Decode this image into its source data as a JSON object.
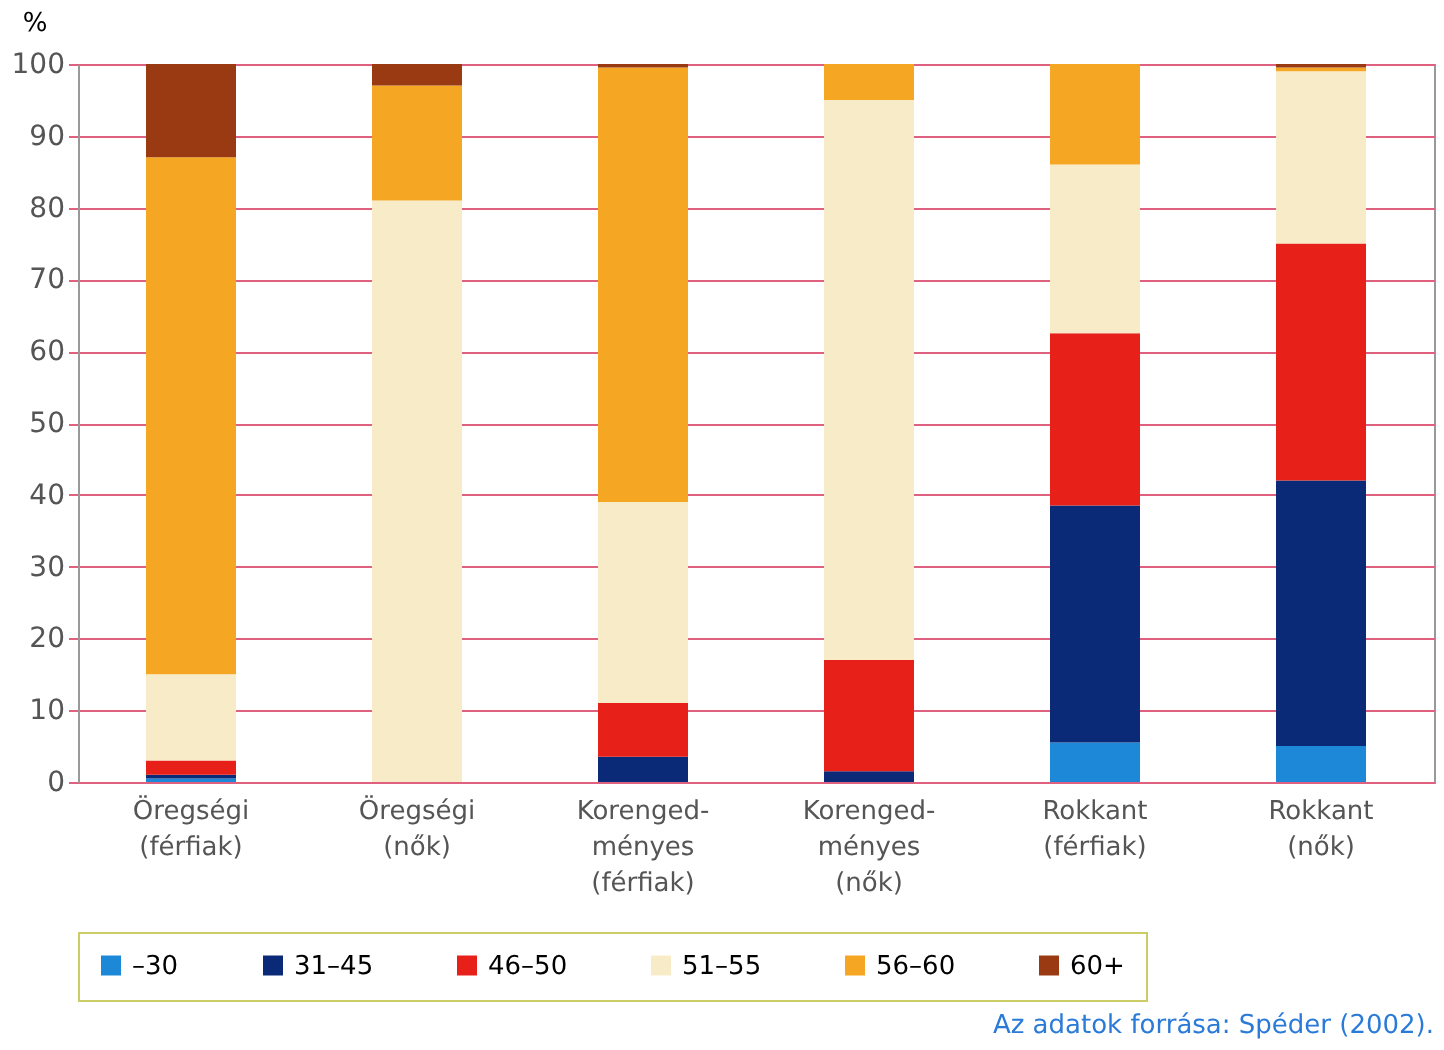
{
  "chart_data": {
    "type": "bar",
    "stacked": true,
    "ylabel": "%",
    "categories": [
      "Öregségi\n(férfiak)",
      "Öregségi\n(nők)",
      "Korenged-\nményes\n(férfiak)",
      "Korenged-\nményes\n(nők)",
      "Rokkant\n(férfiak)",
      "Rokkant\n(nők)"
    ],
    "series": [
      {
        "name": "–30",
        "color": "#1e88d8",
        "values": [
          0.5,
          0,
          0,
          0,
          5.5,
          5
        ]
      },
      {
        "name": "31–45",
        "color": "#0a2a78",
        "values": [
          0.5,
          0,
          3.5,
          1.5,
          33,
          37
        ]
      },
      {
        "name": "46–50",
        "color": "#e8201a",
        "values": [
          2,
          0,
          7.5,
          15.5,
          24,
          33
        ]
      },
      {
        "name": "51–55",
        "color": "#f8ecc8",
        "values": [
          12,
          81,
          28,
          78,
          23.5,
          24
        ]
      },
      {
        "name": "56–60",
        "color": "#f5a623",
        "values": [
          72,
          16,
          60.5,
          5,
          14,
          0.5
        ]
      },
      {
        "name": "60+",
        "color": "#9a3a12",
        "values": [
          13,
          3,
          0.5,
          0,
          0,
          0.5
        ]
      }
    ],
    "ylim": [
      0,
      100
    ],
    "yticks": [
      0,
      10,
      20,
      30,
      40,
      50,
      60,
      70,
      80,
      90,
      100
    ],
    "grid": "y",
    "legend": "bottom",
    "annotations": [
      "Az adatok forrása: Spéder (2002)."
    ]
  }
}
